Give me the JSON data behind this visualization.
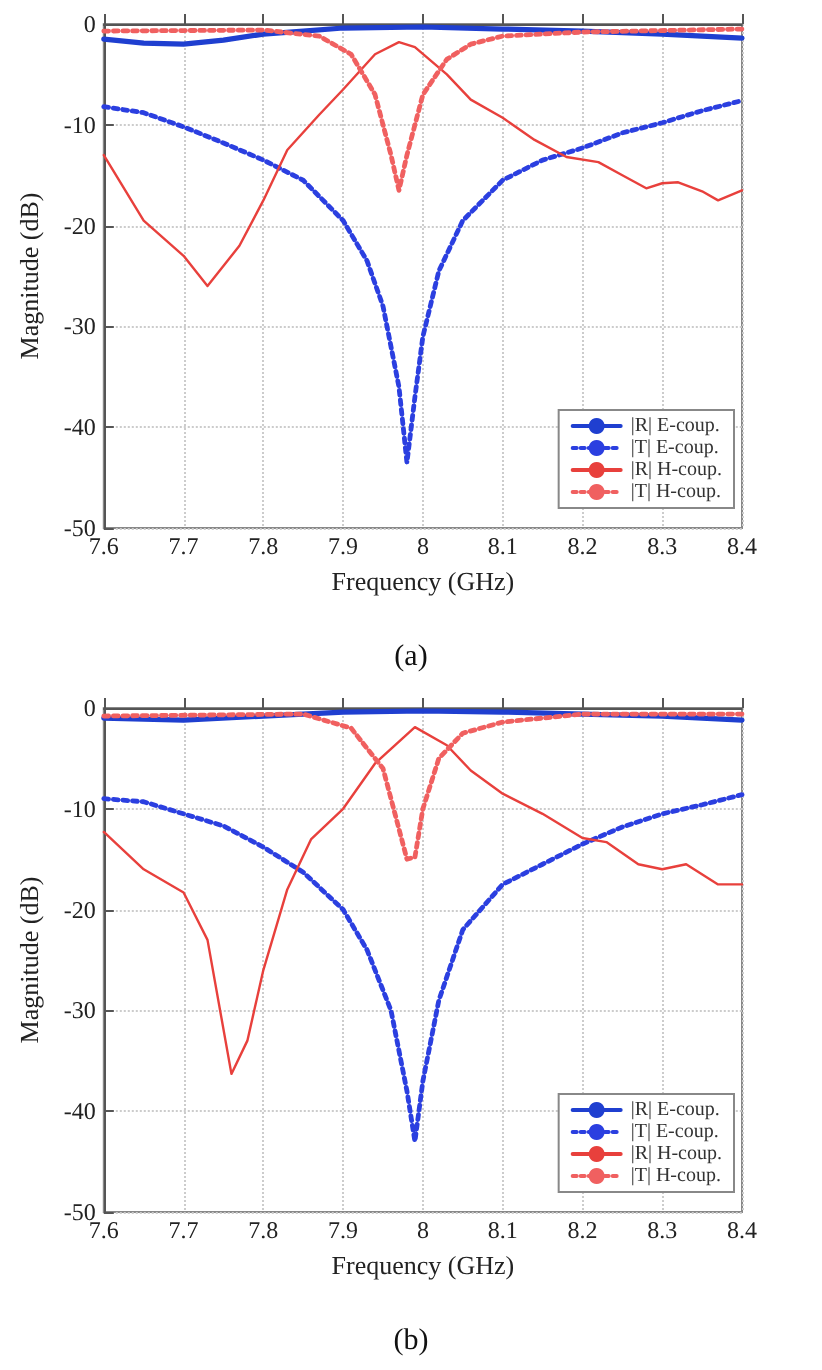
{
  "chart_data": [
    {
      "type": "line",
      "xlabel": "Frequency (GHz)",
      "ylabel": "Magnitude (dB)",
      "xlim": [
        7.6,
        8.4
      ],
      "xticks": [
        7.6,
        7.7,
        7.8,
        7.9,
        8,
        8.1,
        8.2,
        8.3,
        8.4
      ],
      "ylim": [
        -50,
        0
      ],
      "yticks": [
        -50,
        -40,
        -30,
        -20,
        -10,
        0
      ],
      "grid": true,
      "legend": "bottom right",
      "annotations": [
        "(a)"
      ],
      "series": [
        {
          "name": "|R| E-coup.",
          "color": "#1f3fd0",
          "line_style": "solid",
          "x": [
            7.6,
            7.65,
            7.7,
            7.75,
            7.8,
            7.85,
            7.9,
            8.0,
            8.1,
            8.2,
            8.3,
            8.4
          ],
          "values": [
            -1.5,
            -1.9,
            -2.0,
            -1.6,
            -1.0,
            -0.7,
            -0.4,
            -0.3,
            -0.5,
            -0.7,
            -1.0,
            -1.4
          ]
        },
        {
          "name": "|T| E-coup.",
          "color": "#2b3fe0",
          "line_style": "dotted",
          "x": [
            7.6,
            7.65,
            7.7,
            7.75,
            7.8,
            7.85,
            7.9,
            7.93,
            7.95,
            7.97,
            7.98,
            7.99,
            8.0,
            8.02,
            8.05,
            8.1,
            8.15,
            8.2,
            8.25,
            8.3,
            8.35,
            8.4
          ],
          "values": [
            -8.2,
            -8.8,
            -10.2,
            -11.8,
            -13.5,
            -15.5,
            -19.5,
            -23.5,
            -28,
            -36,
            -43.5,
            -37,
            -31,
            -24.5,
            -19.5,
            -15.5,
            -13.5,
            -12.3,
            -10.8,
            -9.8,
            -8.6,
            -7.6
          ]
        },
        {
          "name": "|R| H-coup.",
          "color": "#e8403c",
          "line_style": "solid",
          "x": [
            7.6,
            7.65,
            7.7,
            7.73,
            7.77,
            7.8,
            7.83,
            7.87,
            7.9,
            7.94,
            7.97,
            7.99,
            8.03,
            8.06,
            8.1,
            8.14,
            8.18,
            8.22,
            8.25,
            8.28,
            8.3,
            8.32,
            8.35,
            8.37,
            8.4
          ],
          "values": [
            -13,
            -19.5,
            -23,
            -26,
            -22,
            -17.5,
            -12.5,
            -9,
            -6.5,
            -3,
            -1.8,
            -2.3,
            -5,
            -7.5,
            -9.3,
            -11.5,
            -13.2,
            -13.7,
            -15,
            -16.3,
            -15.8,
            -15.7,
            -16.6,
            -17.5,
            -16.5
          ]
        },
        {
          "name": "|T| H-coup.",
          "color": "#f06060",
          "line_style": "dotted",
          "x": [
            7.6,
            7.8,
            7.87,
            7.91,
            7.94,
            7.96,
            7.97,
            7.98,
            8.0,
            8.03,
            8.06,
            8.1,
            8.2,
            8.4
          ],
          "values": [
            -0.7,
            -0.6,
            -1.2,
            -3,
            -7,
            -13,
            -16.5,
            -13,
            -7,
            -3.5,
            -2,
            -1.2,
            -0.8,
            -0.5
          ]
        }
      ]
    },
    {
      "type": "line",
      "xlabel": "Frequency (GHz)",
      "ylabel": "Magnitude (dB)",
      "xlim": [
        7.6,
        8.4
      ],
      "xticks": [
        7.6,
        7.7,
        7.8,
        7.9,
        8,
        8.1,
        8.2,
        8.3,
        8.4
      ],
      "ylim": [
        -50,
        0
      ],
      "yticks": [
        -50,
        -40,
        -30,
        -20,
        -10,
        0
      ],
      "grid": true,
      "legend": "bottom right",
      "annotations": [
        "(b)"
      ],
      "series": [
        {
          "name": "|R| E-coup.",
          "color": "#1f3fd0",
          "line_style": "solid",
          "x": [
            7.6,
            7.7,
            7.8,
            7.9,
            8.0,
            8.1,
            8.2,
            8.3,
            8.4
          ],
          "values": [
            -1,
            -1.2,
            -0.8,
            -0.4,
            -0.3,
            -0.4,
            -0.6,
            -0.8,
            -1.2
          ]
        },
        {
          "name": "|T| E-coup.",
          "color": "#2b3fe0",
          "line_style": "dotted",
          "x": [
            7.6,
            7.65,
            7.7,
            7.75,
            7.8,
            7.85,
            7.9,
            7.93,
            7.96,
            7.98,
            7.99,
            8.0,
            8.02,
            8.05,
            8.1,
            8.15,
            8.2,
            8.25,
            8.3,
            8.35,
            8.4
          ],
          "values": [
            -9,
            -9.3,
            -10.5,
            -11.7,
            -13.8,
            -16.3,
            -20,
            -24,
            -30,
            -38,
            -43,
            -37,
            -29,
            -22,
            -17.5,
            -15.5,
            -13.5,
            -11.8,
            -10.5,
            -9.6,
            -8.6
          ]
        },
        {
          "name": "|R| H-coup.",
          "color": "#e8403c",
          "line_style": "solid",
          "x": [
            7.6,
            7.65,
            7.7,
            7.73,
            7.76,
            7.78,
            7.8,
            7.83,
            7.86,
            7.9,
            7.94,
            7.99,
            8.03,
            8.06,
            8.1,
            8.15,
            8.2,
            8.23,
            8.27,
            8.3,
            8.33,
            8.37,
            8.4
          ],
          "values": [
            -12.3,
            -16,
            -18.3,
            -23,
            -36.3,
            -33,
            -26,
            -18,
            -13,
            -10,
            -5.5,
            -1.9,
            -3.7,
            -6.2,
            -8.5,
            -10.5,
            -12.9,
            -13.3,
            -15.5,
            -16,
            -15.5,
            -17.5,
            -17.5
          ]
        },
        {
          "name": "|T| H-coup.",
          "color": "#f06060",
          "line_style": "dotted",
          "x": [
            7.6,
            7.85,
            7.91,
            7.95,
            7.97,
            7.98,
            7.99,
            8.0,
            8.02,
            8.05,
            8.1,
            8.2,
            8.4
          ],
          "values": [
            -0.8,
            -0.6,
            -2,
            -6,
            -12,
            -15,
            -14.8,
            -10,
            -5,
            -2.5,
            -1.4,
            -0.6,
            -0.6
          ]
        }
      ]
    }
  ]
}
